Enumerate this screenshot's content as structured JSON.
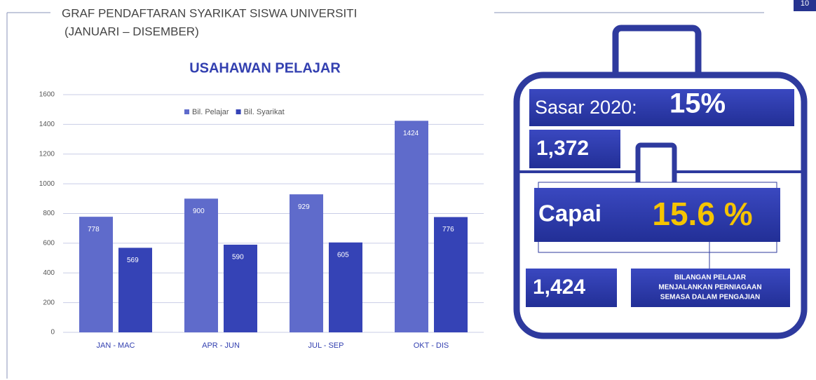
{
  "page_number": "10",
  "header": {
    "title": "GRAF PENDAFTARAN SYARIKAT SISWA UNIVERSITI",
    "subtitle": "(JANUARI – DISEMBER)"
  },
  "chart_data": {
    "type": "bar",
    "title": "USAHAWAN PELAJAR",
    "categories": [
      "JAN - MAC",
      "APR - JUN",
      "JUL - SEP",
      "OKT - DIS"
    ],
    "series": [
      {
        "name": "Bil. Pelajar",
        "color": "#5f6bcb",
        "values": [
          778,
          900,
          929,
          1424
        ]
      },
      {
        "name": "Bil. Syarikat",
        "color": "#3543b6",
        "values": [
          569,
          590,
          605,
          776
        ]
      }
    ],
    "ylim": [
      0,
      1600
    ],
    "yticks": [
      0,
      200,
      400,
      600,
      800,
      1000,
      1200,
      1400,
      1600
    ],
    "grid": true,
    "legend": "top"
  },
  "infographic": {
    "target_label": "Sasar 2020:",
    "target_value": "15%",
    "target_count": "1,372",
    "achieved_label": "Capai",
    "achieved_value": "15.6 %",
    "achieved_count": "1,424",
    "description": [
      "BILANGAN PELAJAR",
      "MENJALANKAN PERNIAGAAN",
      "SEMASA DALAM PENGAJIAN"
    ]
  }
}
